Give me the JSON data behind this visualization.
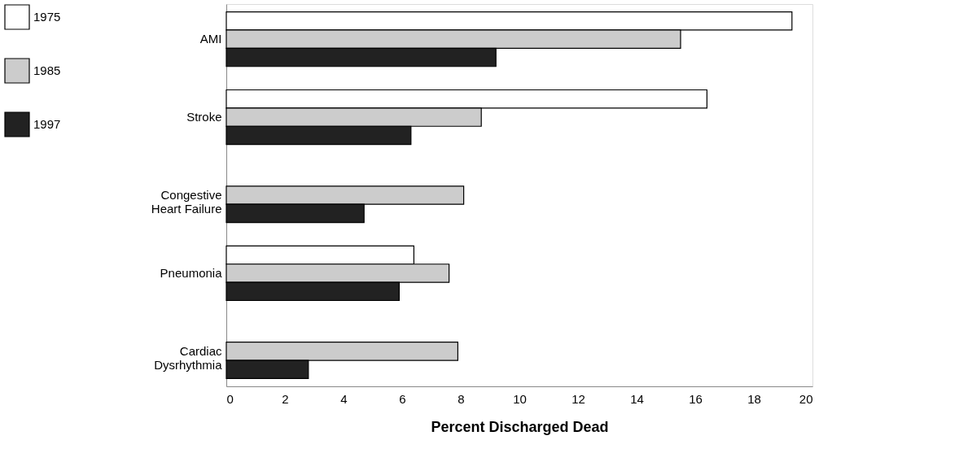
{
  "chart_data": {
    "type": "bar",
    "orientation": "horizontal",
    "xlabel": "Percent Discharged Dead",
    "categories": [
      "AMI",
      "Stroke",
      "Congestive\nHeart Failure",
      "Pneumonia",
      "Cardiac\nDysrhythmia"
    ],
    "series": [
      {
        "name": "1975",
        "color": "#ffffff",
        "values": [
          19.3,
          16.4,
          null,
          6.4,
          null
        ]
      },
      {
        "name": "1985",
        "color": "#cccccc",
        "values": [
          15.5,
          8.7,
          8.1,
          7.6,
          7.9
        ]
      },
      {
        "name": "1997",
        "color": "#222222",
        "values": [
          9.2,
          6.3,
          4.7,
          5.9,
          2.8
        ]
      }
    ],
    "xlim": [
      0,
      20
    ],
    "xticks": [
      0,
      2,
      4,
      6,
      8,
      10,
      12,
      14,
      16,
      18,
      20
    ],
    "grid": false,
    "legend": "left"
  }
}
